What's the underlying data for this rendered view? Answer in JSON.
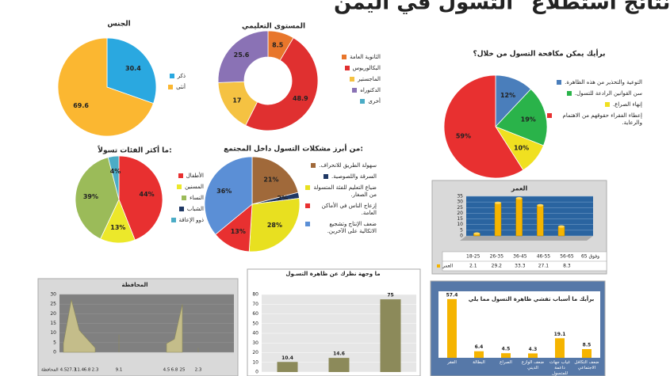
{
  "header": {
    "title": "نتائج استطلاع \"التسول في اليمن\""
  },
  "chart_data": [
    {
      "type": "pie",
      "title": "الجنس",
      "categories": [
        "ذكر",
        "أنثى"
      ],
      "values": [
        30.4,
        69.6
      ],
      "colors": [
        "#2aa8e0",
        "#fbb731"
      ]
    },
    {
      "type": "donut",
      "title": "المستوى التعليمي",
      "categories": [
        "الثانوية العامة",
        "البكالوريوس",
        "الماجستير",
        "الدكتوراه",
        "أخرى"
      ],
      "values": [
        8.5,
        48.9,
        17,
        25.6,
        0
      ],
      "colors": [
        "#e8762b",
        "#e03030",
        "#f5c242",
        "#8a72b5",
        "#4bacc6"
      ]
    },
    {
      "type": "pie",
      "title": "برأيك يمكن مكافحة التسول من خلال؟",
      "categories": [
        "التوعية والتحذير من هذه الظاهرة.",
        "سن القوانين الرادعة للتسول.",
        "إنهاء الصراع.",
        "إعطاء الفقراء حقوقهم من الاهتمام والرعاية."
      ],
      "values": [
        12,
        19,
        10,
        59
      ],
      "value_labels": [
        "12%",
        "19%",
        "10%",
        "59%"
      ],
      "colors": [
        "#4a7ebb",
        "#2ab34a",
        "#f0e020",
        "#e83030"
      ]
    },
    {
      "type": "pie",
      "title": "ما أكثر الفئات تسولاً:",
      "categories": [
        "الأطفال",
        "المسنين",
        "النساء",
        "الشباب",
        "ذوو الإعاقة"
      ],
      "values": [
        44,
        13,
        39,
        0,
        4
      ],
      "value_labels": [
        "44%",
        "13%",
        "39%",
        null,
        "4%"
      ],
      "colors": [
        "#e83030",
        "#ece82a",
        "#9bbb59",
        "#1f3864",
        "#4bacc6"
      ]
    },
    {
      "type": "pie",
      "title": "من أبرز مشكلات التسول داخل المجتمع:",
      "categories": [
        "سهولة الطريق للانحراف.",
        "السرقة واللصوصية.",
        "ضياع التعليم للفئة المتسولة من الصغار.",
        "إزعاج الناس في الأماكن العامة.",
        "ضعف الإنتاج وتشجيع الاتكالية على الآخرين."
      ],
      "values": [
        21,
        2,
        28,
        13,
        36
      ],
      "value_labels": [
        "21%",
        "2%",
        "28%",
        "13%",
        "36%"
      ],
      "colors": [
        "#a0693a",
        "#1f3864",
        "#e8e020",
        "#e83030",
        "#5b8fd6"
      ]
    },
    {
      "type": "bar3d",
      "title": "العمر",
      "categories": [
        "18-25",
        "26-35",
        "36-45",
        "46-55",
        "56-65",
        "65 وفوق"
      ],
      "series": [
        {
          "name": "العمر",
          "color": "#f5b400",
          "values": [
            2.1,
            29.2,
            33.3,
            27.1,
            8.3,
            null
          ]
        }
      ],
      "ylim": [
        0,
        35
      ],
      "yticks": [
        0,
        5,
        10,
        15,
        20,
        25,
        30,
        35
      ]
    },
    {
      "type": "area",
      "title": "المحافظة",
      "categories": [
        null,
        null,
        null,
        null,
        null,
        null,
        null,
        null,
        null,
        null,
        null,
        null,
        null,
        null,
        null,
        null,
        null,
        null,
        null,
        null,
        null,
        null
      ],
      "series": [
        {
          "name": "المحافظة",
          "color": "#c4bd8a",
          "values": [
            4.5,
            27.3,
            11.4,
            6.8,
            2.3,
            null,
            null,
            9.1,
            null,
            null,
            null,
            null,
            null,
            4.5,
            6.8,
            25,
            null,
            2.3,
            null,
            null,
            null,
            null
          ]
        }
      ],
      "ylim": [
        0,
        30
      ],
      "yticks": [
        0,
        5,
        10,
        15,
        20,
        25,
        30
      ]
    },
    {
      "type": "bar",
      "title": "ما وجهة نظرك عن ظاهرة التسـول",
      "categories": [
        null,
        null,
        null
      ],
      "values": [
        10.4,
        14.6,
        75
      ],
      "color": "#8c8a5a",
      "ylim": [
        0,
        80
      ],
      "yticks": [
        0,
        10,
        20,
        30,
        40,
        50,
        60,
        70,
        80
      ]
    },
    {
      "type": "bar",
      "title": "برأيك ما أسباب تفشي ظاهرة التسول مما يلي",
      "categories": [
        "الفقر",
        "البطالة",
        "الصراع",
        "ضعف الوازع الديني",
        "غياب جهات داعمة للمتسول",
        "ضعف التكافل الاجتماعي"
      ],
      "values": [
        57.4,
        6.4,
        4.5,
        4.3,
        19.1,
        8.5
      ],
      "color": "#f5b400",
      "ylim": [
        0,
        65
      ]
    }
  ]
}
